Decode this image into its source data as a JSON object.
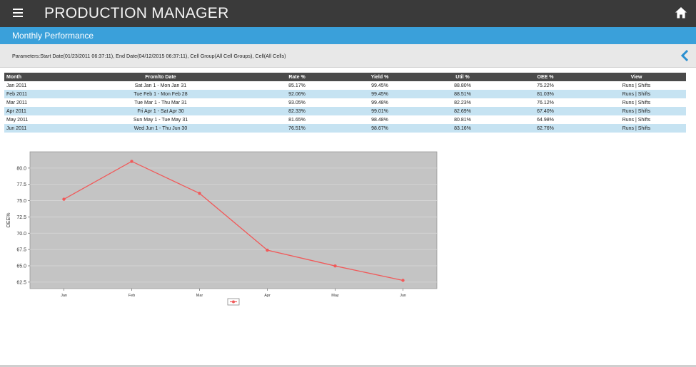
{
  "app": {
    "title": "PRODUCTION MANAGER",
    "menu_icon": "hamburger-menu-icon",
    "home_icon": "home-icon"
  },
  "subheader": {
    "title": "Monthly Performance"
  },
  "parameters": {
    "text": "Parameters:Start Date(01/23/2011 06:37:11), End Date(04/12/2015 06:37:11), Cell Group(All Cell Groups), Cell(All Cells)",
    "back_icon": "chevron-left-icon"
  },
  "table": {
    "headers": [
      "Month",
      "From/to Date",
      "Rate %",
      "Yield %",
      "Util %",
      "OEE %",
      "View"
    ],
    "rows": [
      {
        "month": "Jan 2011",
        "range": "Sat Jan 1 - Mon Jan 31",
        "rate": "85.17%",
        "yield": "99.45%",
        "util": "88.80%",
        "oee": "75.22%",
        "runs": "Runs",
        "shifts": "Shifts"
      },
      {
        "month": "Feb 2011",
        "range": "Tue Feb 1 - Mon Feb 28",
        "rate": "92.06%",
        "yield": "99.45%",
        "util": "88.51%",
        "oee": "81.03%",
        "runs": "Runs",
        "shifts": "Shifts"
      },
      {
        "month": "Mar 2011",
        "range": "Tue Mar 1 - Thu Mar 31",
        "rate": "93.05%",
        "yield": "99.48%",
        "util": "82.23%",
        "oee": "76.12%",
        "runs": "Runs",
        "shifts": "Shifts"
      },
      {
        "month": "Apr 2011",
        "range": "Fri Apr 1 - Sat Apr 30",
        "rate": "82.33%",
        "yield": "99.01%",
        "util": "82.69%",
        "oee": "67.40%",
        "runs": "Runs",
        "shifts": "Shifts"
      },
      {
        "month": "May 2011",
        "range": "Sun May 1 - Tue May 31",
        "rate": "81.65%",
        "yield": "98.48%",
        "util": "80.81%",
        "oee": "64.98%",
        "runs": "Runs",
        "shifts": "Shifts"
      },
      {
        "month": "Jun 2011",
        "range": "Wed Jun 1 - Thu Jun 30",
        "rate": "76.51%",
        "yield": "98.67%",
        "util": "83.16%",
        "oee": "62.76%",
        "runs": "Runs",
        "shifts": "Shifts"
      }
    ]
  },
  "chart_data": {
    "type": "line",
    "categories": [
      "Jan",
      "Feb",
      "Mar",
      "Apr",
      "May",
      "Jun"
    ],
    "series": [
      {
        "values": [
          75.22,
          81.03,
          76.12,
          67.4,
          64.98,
          62.76
        ],
        "color": "#f05a5a"
      }
    ],
    "ylabel": "OEE%",
    "ylim": [
      61.5,
      82.5
    ],
    "yticks": [
      "62.5",
      "65.0",
      "67.5",
      "70.0",
      "72.5",
      "75.0",
      "77.5",
      "80.0"
    ],
    "grid": true,
    "legend": "bottom-center",
    "plot_background": "#c4c4c4"
  },
  "colors": {
    "topbar": "#3a3a3a",
    "subbar": "#3aa0da",
    "table_header": "#4a4a4a",
    "row_alt": "#c6e3f2"
  }
}
